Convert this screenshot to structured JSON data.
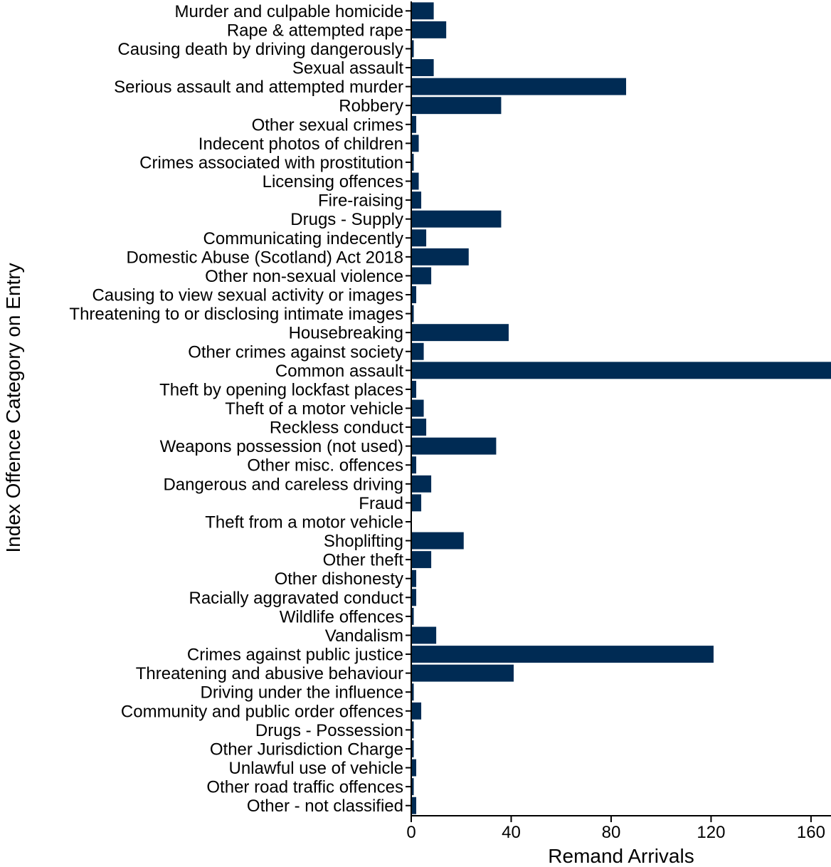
{
  "chart_data": {
    "type": "bar",
    "orientation": "horizontal",
    "title": "",
    "xlabel": "Remand Arrivals",
    "ylabel": "Index Offence Category on Entry",
    "xlim": [
      0,
      168
    ],
    "xticks": [
      0,
      40,
      80,
      120,
      160
    ],
    "grid": false,
    "legend": "none",
    "bar_color": "#002B54",
    "categories": [
      "Murder and culpable homicide",
      "Rape & attempted rape",
      "Causing death by driving dangerously",
      "Sexual assault",
      "Serious assault and attempted murder",
      "Robbery",
      "Other sexual crimes",
      "Indecent photos of children",
      "Crimes associated with prostitution",
      "Licensing offences",
      "Fire-raising",
      "Drugs - Supply",
      "Communicating indecently",
      "Domestic Abuse (Scotland) Act 2018",
      "Other non-sexual violence",
      "Causing to view sexual activity or images",
      "Threatening to or disclosing intimate images",
      "Housebreaking",
      "Other crimes against society",
      "Common assault",
      "Theft by opening lockfast places",
      "Theft of a motor vehicle",
      "Reckless conduct",
      "Weapons possession (not used)",
      "Other misc. offences",
      "Dangerous and careless driving",
      "Fraud",
      "Theft from a motor vehicle",
      "Shoplifting",
      "Other theft",
      "Other dishonesty",
      "Racially aggravated conduct",
      "Wildlife offences",
      "Vandalism",
      "Crimes against public justice",
      "Threatening and abusive behaviour",
      "Driving under the influence",
      "Community and public order offences",
      "Drugs - Possession",
      "Other Jurisdiction Charge",
      "Unlawful use of vehicle",
      "Other road traffic offences",
      "Other - not classified"
    ],
    "values": [
      9,
      14,
      1,
      9,
      86,
      36,
      2,
      3,
      1,
      3,
      4,
      36,
      6,
      23,
      8,
      2,
      1,
      39,
      5,
      170,
      2,
      5,
      6,
      34,
      2,
      8,
      4,
      0,
      21,
      8,
      2,
      2,
      1,
      10,
      121,
      41,
      1,
      4,
      1,
      1,
      2,
      1,
      2
    ]
  }
}
